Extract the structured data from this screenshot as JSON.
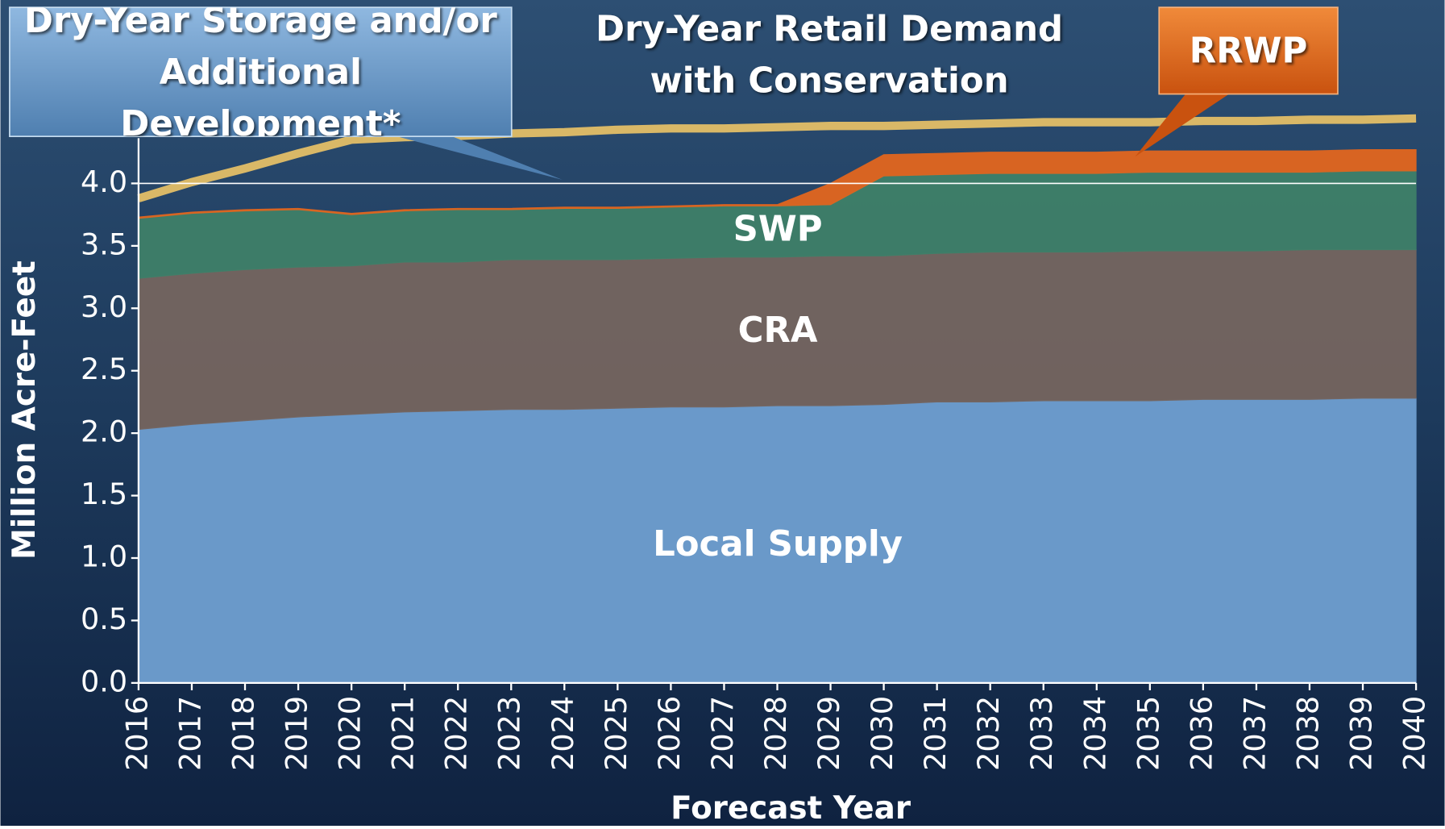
{
  "chart_data": {
    "type": "area",
    "stacked": true,
    "x_label": "Forecast Year",
    "y_label": "Million Acre-Feet",
    "categories": [
      "2016",
      "2017",
      "2018",
      "2019",
      "2020",
      "2021",
      "2022",
      "2023",
      "2024",
      "2025",
      "2026",
      "2027",
      "2028",
      "2029",
      "2030",
      "2031",
      "2032",
      "2033",
      "2034",
      "2035",
      "2036",
      "2037",
      "2038",
      "2039",
      "2040"
    ],
    "ylim": [
      0,
      5
    ],
    "yticks": [
      {
        "value": 0,
        "label": "0.0"
      },
      {
        "value": 0.5,
        "label": "0.5"
      },
      {
        "value": 1,
        "label": "1.0"
      },
      {
        "value": 1.5,
        "label": "1.5"
      },
      {
        "value": 2,
        "label": "2.0"
      },
      {
        "value": 2.5,
        "label": "2.5"
      },
      {
        "value": 3,
        "label": "3.0"
      },
      {
        "value": 3.5,
        "label": "3.5"
      },
      {
        "value": 4,
        "label": "4.0"
      }
    ],
    "grid": true,
    "series": [
      {
        "name": "Local Supply",
        "color": "#6f9fd0",
        "values": [
          2.03,
          2.07,
          2.1,
          2.13,
          2.15,
          2.17,
          2.18,
          2.19,
          2.19,
          2.2,
          2.21,
          2.21,
          2.22,
          2.22,
          2.23,
          2.25,
          2.25,
          2.26,
          2.26,
          2.26,
          2.27,
          2.27,
          2.27,
          2.28,
          2.28
        ]
      },
      {
        "name": "CRA",
        "color": "#75655f",
        "values": [
          1.21,
          1.21,
          1.21,
          1.2,
          1.19,
          1.2,
          1.19,
          1.2,
          1.2,
          1.19,
          1.19,
          1.2,
          1.19,
          1.2,
          1.19,
          1.19,
          1.2,
          1.19,
          1.19,
          1.2,
          1.19,
          1.19,
          1.2,
          1.19,
          1.19
        ]
      },
      {
        "name": "SWP",
        "color": "#3f8069",
        "values": [
          0.48,
          0.48,
          0.47,
          0.46,
          0.41,
          0.41,
          0.42,
          0.4,
          0.41,
          0.41,
          0.41,
          0.41,
          0.41,
          0.41,
          0.64,
          0.63,
          0.63,
          0.63,
          0.63,
          0.63,
          0.63,
          0.63,
          0.62,
          0.63,
          0.63
        ]
      },
      {
        "name": "RRWP",
        "color": "#e2661f",
        "values": [
          0.01,
          0.01,
          0.01,
          0.01,
          0.01,
          0.01,
          0.01,
          0.01,
          0.01,
          0.01,
          0.01,
          0.01,
          0.01,
          0.17,
          0.17,
          0.17,
          0.17,
          0.17,
          0.17,
          0.17,
          0.17,
          0.17,
          0.17,
          0.17,
          0.17
        ]
      },
      {
        "name": "Dry-Year Retail Demand with Conservation",
        "type": "line",
        "color": "#d9b867",
        "values": [
          3.88,
          4.01,
          4.12,
          4.24,
          4.35,
          4.37,
          4.38,
          4.4,
          4.41,
          4.43,
          4.44,
          4.44,
          4.45,
          4.46,
          4.46,
          4.47,
          4.48,
          4.49,
          4.49,
          4.49,
          4.5,
          4.5,
          4.51,
          4.51,
          4.52
        ]
      }
    ],
    "annotations": [
      "Dry-Year Storage and/or Additional Development*"
    ]
  }
}
